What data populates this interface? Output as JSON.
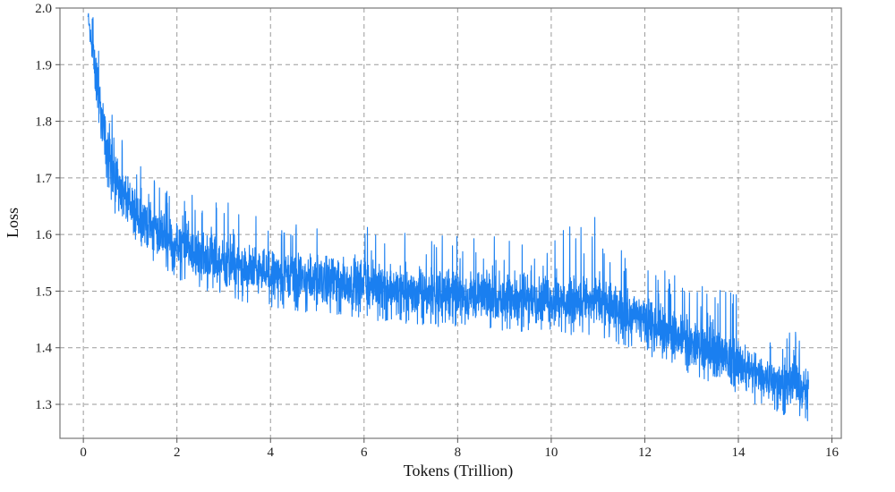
{
  "chart_data": {
    "type": "line",
    "title": "",
    "xlabel": "Tokens (Trillion)",
    "ylabel": "Loss",
    "xlim": [
      -0.5,
      16.2
    ],
    "ylim": [
      1.24,
      2.0
    ],
    "xticks": [
      0,
      2,
      4,
      6,
      8,
      10,
      12,
      14,
      16
    ],
    "yticks": [
      1.3,
      1.4,
      1.5,
      1.6,
      1.7,
      1.8,
      1.9,
      2.0
    ],
    "ytick_labels": [
      "1.3",
      "1.4",
      "1.5",
      "1.6",
      "1.7",
      "1.8",
      "1.9",
      "2.0"
    ],
    "grid": true,
    "grid_style": "dashed",
    "color": "#1a7ff0",
    "series": [
      {
        "x": [
          0.1,
          0.2,
          0.3,
          0.4,
          0.5,
          0.7,
          1.0,
          1.5,
          2.0,
          3.0,
          4.0,
          5.0,
          6.0,
          7.0,
          8.0,
          9.0,
          10.0,
          11.0,
          12.0,
          13.0,
          14.0,
          15.0,
          15.5
        ],
        "y_center": [
          2.0,
          1.93,
          1.86,
          1.8,
          1.75,
          1.69,
          1.64,
          1.6,
          1.57,
          1.54,
          1.52,
          1.51,
          1.5,
          1.49,
          1.485,
          1.48,
          1.475,
          1.47,
          1.44,
          1.4,
          1.36,
          1.33,
          1.32
        ],
        "y_low": [
          1.97,
          1.88,
          1.8,
          1.75,
          1.7,
          1.64,
          1.6,
          1.56,
          1.53,
          1.5,
          1.48,
          1.47,
          1.46,
          1.45,
          1.445,
          1.44,
          1.435,
          1.43,
          1.4,
          1.36,
          1.32,
          1.29,
          1.28
        ],
        "y_high": [
          2.0,
          1.97,
          1.92,
          1.86,
          1.81,
          1.75,
          1.7,
          1.66,
          1.63,
          1.6,
          1.58,
          1.57,
          1.56,
          1.55,
          1.545,
          1.54,
          1.535,
          1.53,
          1.5,
          1.46,
          1.42,
          1.38,
          1.37
        ],
        "spike_max": [
          2.0,
          2.0,
          1.95,
          1.9,
          1.84,
          1.8,
          1.78,
          1.72,
          1.68,
          1.66,
          1.63,
          1.62,
          1.62,
          1.61,
          1.6,
          1.6,
          1.6,
          1.64,
          1.55,
          1.52,
          1.5,
          1.45,
          1.4
        ]
      }
    ]
  }
}
